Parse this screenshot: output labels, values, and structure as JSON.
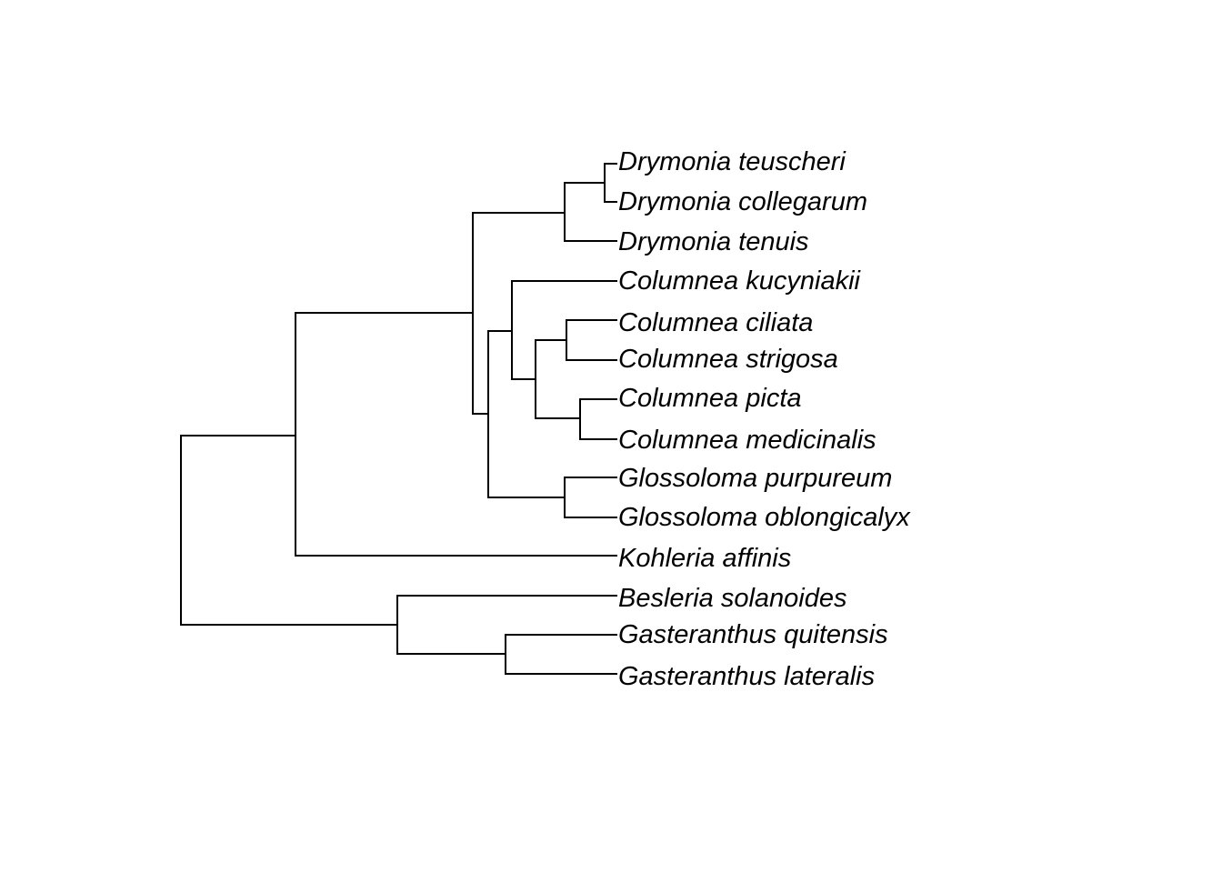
{
  "tree": {
    "type": "phylogram",
    "line_color": "#000000",
    "taxa": [
      "Drymonia teuscheri",
      "Drymonia collegarum",
      "Drymonia tenuis",
      "Columnea kucyniakii",
      "Columnea ciliata",
      "Columnea strigosa",
      "Columnea picta",
      "Columnea medicinalis",
      "Glossoloma purpureum",
      "Glossoloma oblongicalyx",
      "Kohleria affinis",
      "Besleria solanoides",
      "Gasteranthus quitensis",
      "Gasteranthus lateralis"
    ],
    "newick": "(((((Drymonia teuscheri,Drymonia collegarum),Drymonia tenuis),((Columnea kucyniakii,((Columnea ciliata,Columnea strigosa),(Columnea picta,Columnea medicinalis))),(Glossoloma purpureum,Glossoloma oblongicalyx))),Kohleria affinis),(Besleria solanoides,(Gasteranthus quitensis,Gasteranthus lateralis)));"
  }
}
